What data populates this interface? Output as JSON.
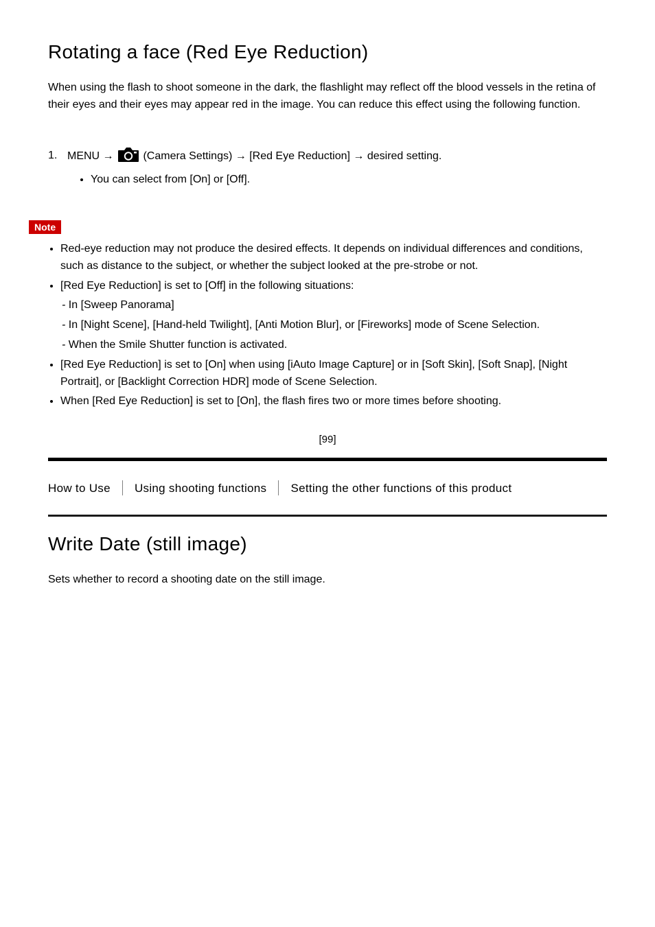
{
  "heading": "Rotating a face (Red Eye Reduction)",
  "intro": "When using the flash to shoot someone in the dark, the flashlight may reflect off the blood vessels in the retina of their eyes and their eyes may appear red in the image. You can reduce this effect using the following function.",
  "step": {
    "num": "1.",
    "prefix": "MENU →",
    "segment1": "(Camera Settings) →",
    "segment2": "[Red Eye Reduction]",
    "segment3": "→ desired setting.",
    "bullet": "You can select from [On] or [Off]."
  },
  "camera_icon": {
    "fill": "#000000",
    "width": 30,
    "height": 22
  },
  "note": {
    "label": "Note",
    "badge_bg": "#cc0000",
    "badge_fg": "#ffffff",
    "items": [
      {
        "text": "Red-eye reduction may not produce the desired effects. It depends on individual differences and conditions, such as distance to the subject, or whether the subject looked at the pre-strobe or not.",
        "prefix": ""
      },
      {
        "text": "[Red Eye Reduction] is set to [Off] in the following situations:",
        "prefix": ""
      },
      {
        "text": "In [Sweep Panorama]",
        "prefix": "- "
      },
      {
        "text": "In [Night Scene], [Hand-held Twilight], [Anti Motion Blur], or [Fireworks] mode of Scene Selection.",
        "prefix": "- "
      },
      {
        "text": "When the Smile Shutter function is activated.",
        "prefix": "- "
      },
      {
        "text": "[Red Eye Reduction] is set to [On] when using [iAuto Image Capture] or in [Soft Skin], [Soft Snap], [Night Portrait], or [Backlight Correction HDR] mode of Scene Selection.",
        "prefix": ""
      },
      {
        "text": "When [Red Eye Reduction] is set to [On], the flash fires two or more times before shooting.",
        "prefix": ""
      }
    ],
    "sub_indices": [
      2,
      3,
      4
    ]
  },
  "page_number": "[99]",
  "breadcrumbs": {
    "items": [
      "How to Use",
      "Using shooting functions",
      "Setting the other functions of this product"
    ]
  },
  "section": {
    "title": "Write Date (still image)",
    "body": "Sets whether to record a shooting date on the still image."
  },
  "colors": {
    "text": "#000000",
    "bg": "#ffffff",
    "rule_thick": "#000000",
    "rule_thin": "#1a1a1a",
    "sep": "#808080"
  }
}
